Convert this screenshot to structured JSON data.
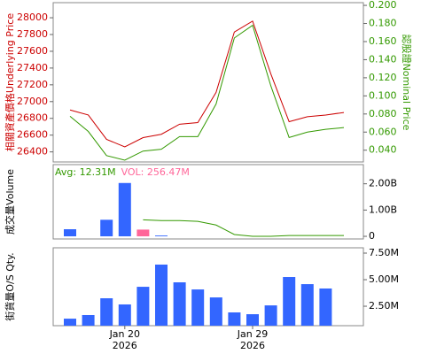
{
  "chart_data": [
    {
      "type": "line",
      "ylabel": "相關資產價格Underlying Price",
      "ylabel_color": "#cc0000",
      "y2label": "認股證Nominal Price",
      "y2label_color": "#339900",
      "ylim": [
        26280,
        28180
      ],
      "yticks": [
        26400,
        26600,
        26800,
        27000,
        27200,
        27400,
        27600,
        27800,
        28000
      ],
      "y2lim": [
        0.027,
        0.203
      ],
      "y2ticks": [
        {
          "value": 0.04,
          "label": "0.040"
        },
        {
          "value": 0.06,
          "label": "0.060"
        },
        {
          "value": 0.08,
          "label": "0.080"
        },
        {
          "value": 0.1,
          "label": "0.100"
        },
        {
          "value": 0.12,
          "label": "0.120"
        },
        {
          "value": 0.14,
          "label": "0.140"
        },
        {
          "value": 0.16,
          "label": "0.160"
        },
        {
          "value": 0.18,
          "label": "0.180"
        },
        {
          "value": 0.2,
          "label": "0.200"
        }
      ],
      "series": [
        {
          "color": "#cc0000",
          "values": [
            26900,
            26840,
            26550,
            26460,
            26570,
            26610,
            26730,
            26750,
            27110,
            27830,
            27960,
            27330,
            26760,
            26820,
            26840,
            26870
          ]
        },
        {
          "color": "#339900",
          "axis": "y2",
          "values": [
            0.0775,
            0.0607,
            0.034,
            0.029,
            0.039,
            0.041,
            0.055,
            0.055,
            0.091,
            0.164,
            0.178,
            0.111,
            0.054,
            0.06,
            0.063,
            0.065
          ]
        }
      ]
    },
    {
      "type": "bar",
      "ylabel": "成交量Volume",
      "ylabel_color": "#000000",
      "annotations": [
        {
          "text": "Avg: 12.31M",
          "color": "#339900"
        },
        {
          "text": "VOL: 256.47M",
          "color": "#ff6699"
        }
      ],
      "ylim": [
        -100000000,
        2730000000
      ],
      "yticks": [
        0,
        {
          "value": 1000000000,
          "label": "1.00B"
        },
        {
          "value": 2000000000,
          "label": "2.00B"
        }
      ],
      "series": [
        {
          "type": "bar",
          "color": "#3366ff",
          "bar_colors": [
            null,
            null,
            null,
            null,
            "#ff6699",
            null,
            null,
            null,
            null,
            null,
            null,
            null,
            null,
            null,
            null,
            null
          ],
          "values": [
            270000000,
            0,
            630000000,
            2030000000,
            256470000,
            30000000,
            0,
            0,
            0,
            0,
            0,
            0,
            0,
            0,
            0,
            0
          ]
        },
        {
          "type": "line",
          "color": "#339900",
          "values": [
            null,
            null,
            null,
            null,
            630000000,
            600000000,
            600000000,
            570000000,
            430000000,
            70000000,
            0,
            0,
            30000000,
            30000000,
            30000000,
            30000000
          ]
        }
      ]
    },
    {
      "type": "bar",
      "ylabel": "街貨量O/S Qty.",
      "ylabel_color": "#000000",
      "ylim": [
        670000,
        8000000
      ],
      "yticks": [
        {
          "value": 2500000,
          "label": "2.50M"
        },
        {
          "value": 5000000,
          "label": "5.00M"
        },
        {
          "value": 7500000,
          "label": "7.50M"
        }
      ],
      "categories": [
        null,
        null,
        null,
        "Jan 20",
        null,
        null,
        null,
        null,
        null,
        null,
        "Jan 29",
        null,
        null,
        null,
        null,
        null
      ],
      "category_years": [
        null,
        null,
        null,
        "2026",
        null,
        null,
        null,
        null,
        null,
        null,
        "2026",
        null,
        null,
        null,
        null,
        null
      ],
      "color": "#3366ff",
      "values": [
        1330000,
        1670000,
        3250000,
        2670000,
        4330000,
        6420000,
        4750000,
        4080000,
        3330000,
        1920000,
        1750000,
        2580000,
        5250000,
        4580000,
        4170000,
        null
      ]
    }
  ]
}
